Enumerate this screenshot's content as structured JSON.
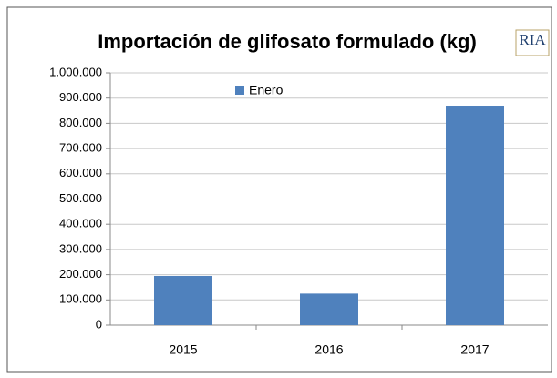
{
  "chart_data": {
    "type": "bar",
    "title": "Importación de glifosato formulado (kg)",
    "logo": "RIA",
    "categories": [
      "2015",
      "2016",
      "2017"
    ],
    "series": [
      {
        "name": "Enero",
        "color": "#4f81bd",
        "values": [
          195000,
          125000,
          870000
        ]
      }
    ],
    "ylim": [
      0,
      1000000
    ],
    "yticks": [
      0,
      {
        "value": 100000,
        "label": "100.000"
      },
      {
        "value": 200000,
        "label": "200.000"
      },
      {
        "value": 300000,
        "label": "300.000"
      },
      {
        "value": 400000,
        "label": "400.000"
      },
      {
        "value": 500000,
        "label": "500.000"
      },
      {
        "value": 600000,
        "label": "600.000"
      },
      {
        "value": 700000,
        "label": "700.000"
      },
      {
        "value": 800000,
        "label": "800.000"
      },
      {
        "value": 900000,
        "label": "900.000"
      },
      {
        "value": 1000000,
        "label": "1.000.000"
      }
    ],
    "grid": true,
    "legend": "top"
  }
}
